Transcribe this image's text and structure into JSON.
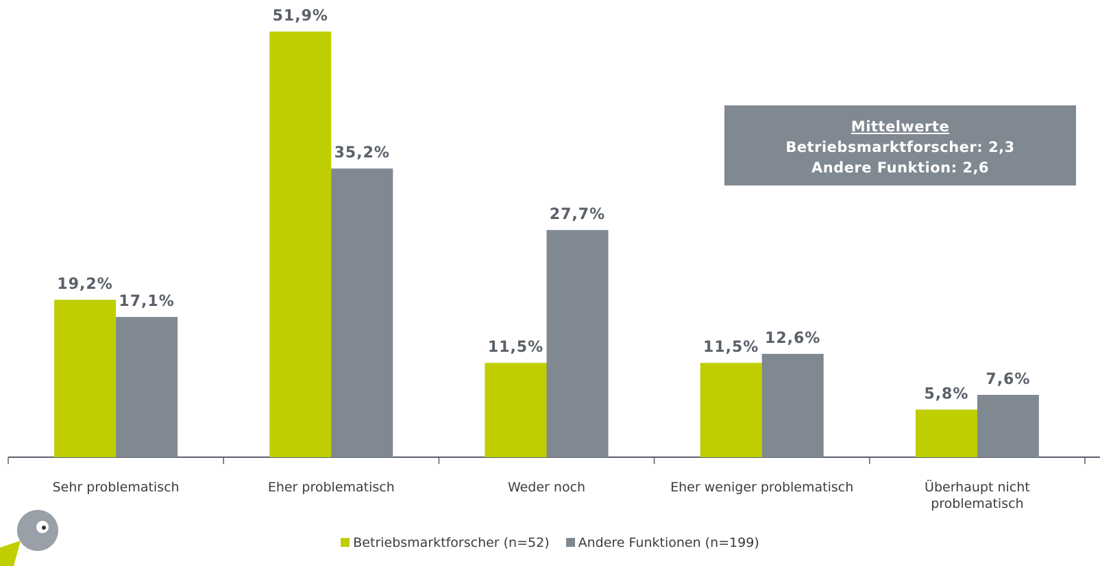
{
  "chart_data": {
    "type": "bar",
    "categories": [
      "Sehr problematisch",
      "Eher problematisch",
      "Weder noch",
      "Eher weniger problematisch",
      "Überhaupt nicht problematisch"
    ],
    "series": [
      {
        "name": "Betriebsmarktforscher (n=52)",
        "color": "#bfce00",
        "values": [
          19.2,
          51.9,
          11.5,
          11.5,
          5.8
        ],
        "value_labels": [
          "19,2%",
          "51,9%",
          "11,5%",
          "11,5%",
          "5,8%"
        ]
      },
      {
        "name": "Andere Funktionen (n=199)",
        "color": "#808891",
        "values": [
          17.1,
          35.2,
          27.7,
          12.6,
          7.6
        ],
        "value_labels": [
          "17,1%",
          "35,2%",
          "27,7%",
          "12,6%",
          "7,6%"
        ]
      }
    ],
    "ylim": [
      0,
      55
    ],
    "legend": "bottom",
    "annotation": {
      "title": "Mittelwerte",
      "lines": [
        "Betriebsmarktforscher: 2,3",
        "Andere Funktion: 2,6"
      ]
    }
  }
}
